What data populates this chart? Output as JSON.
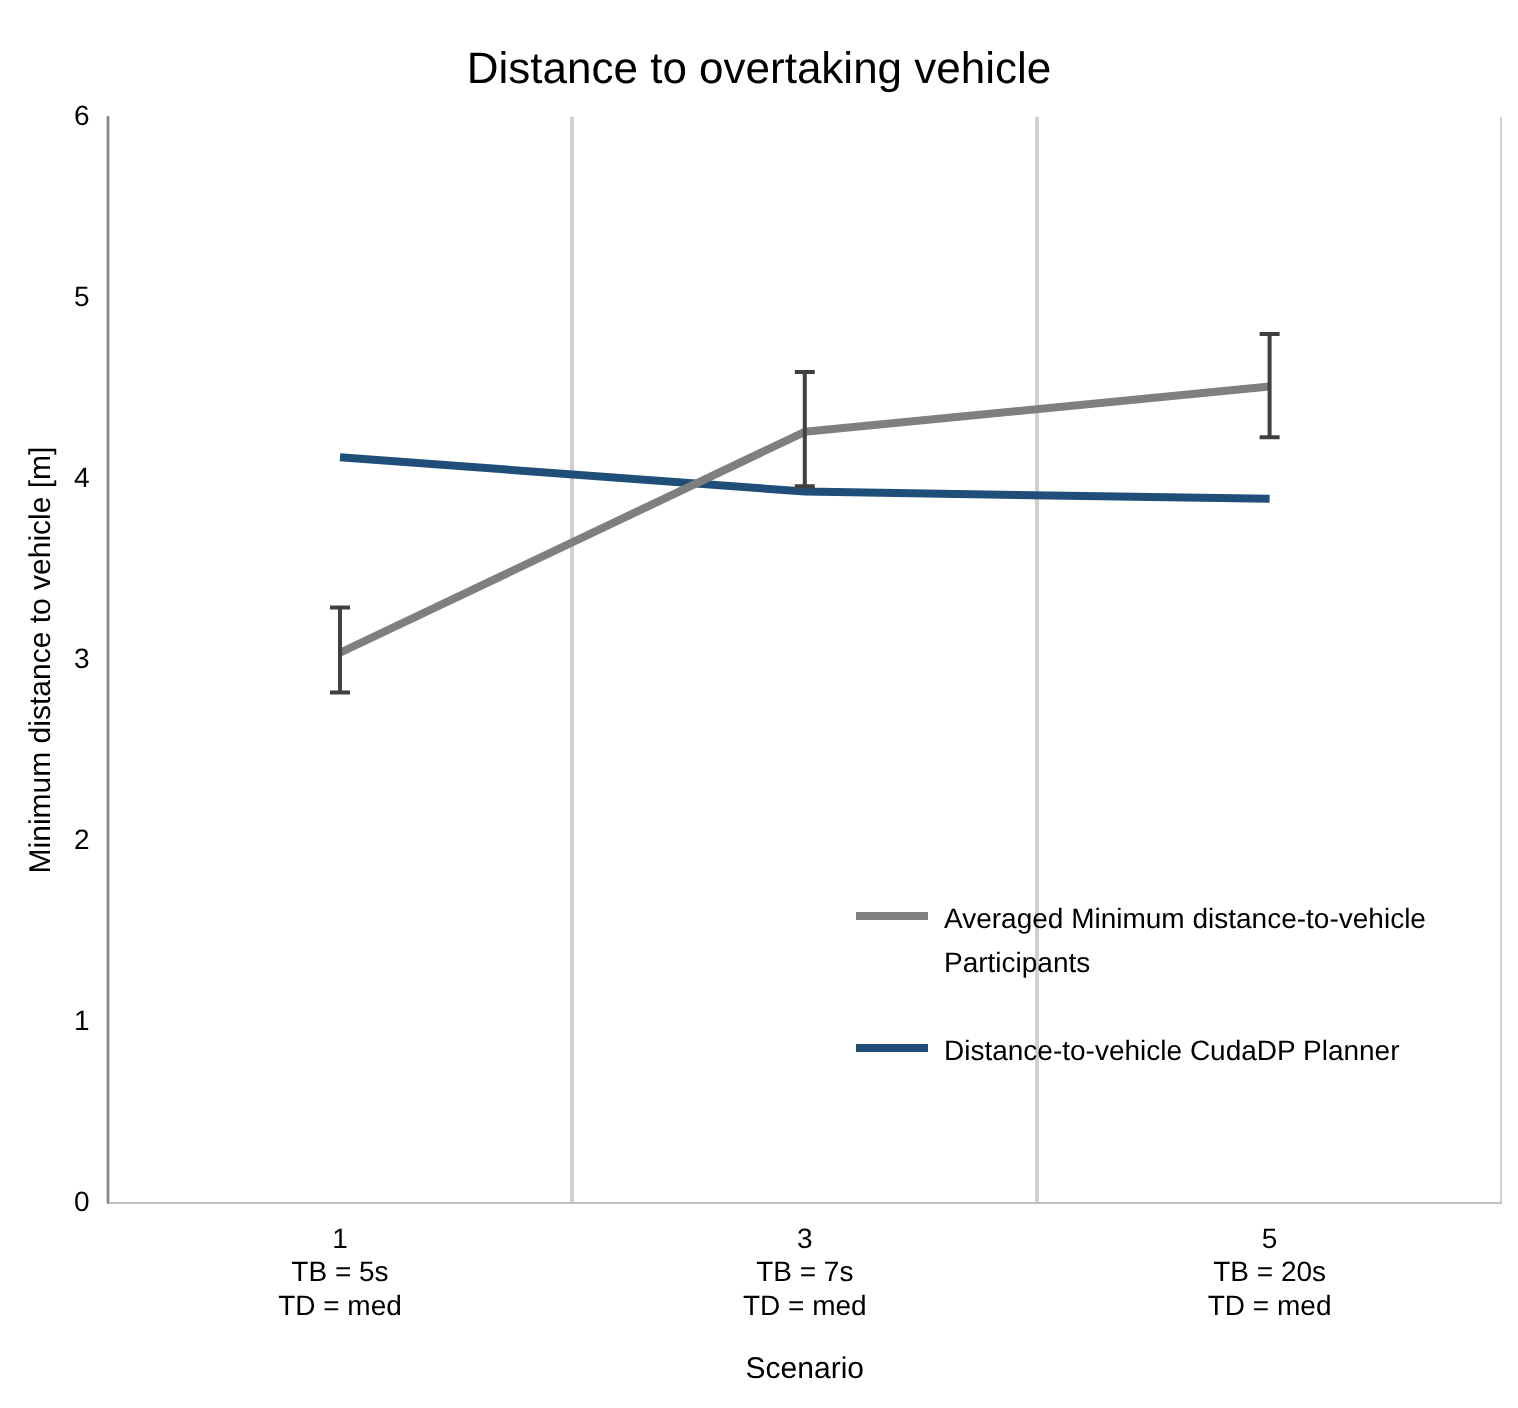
{
  "chart_data": {
    "type": "line",
    "title": "Distance to overtaking vehicle",
    "xlabel": "Scenario",
    "ylabel": "Minimum distance to vehicle [m]",
    "categories": [
      "1\nTB = 5s\nTD = med",
      "3\nTB = 7s\nTD = med",
      "5\nTB = 20s\nTD = med"
    ],
    "series": [
      {
        "name": "Averaged Minimum distance-to-vehicle Participants",
        "color": "#7f7f7f",
        "values": [
          3.04,
          4.26,
          4.51
        ],
        "errors": [
          [
            2.82,
            3.29
          ],
          [
            3.96,
            4.59
          ],
          [
            4.23,
            4.8
          ]
        ]
      },
      {
        "name": "Distance-to-vehicle CudaDP Planner",
        "color": "#1f4e79",
        "values": [
          4.12,
          3.93,
          3.89
        ]
      }
    ],
    "ylim": [
      0,
      6
    ],
    "yticks": [
      0,
      1,
      2,
      3,
      4,
      5,
      6
    ],
    "grid": "x",
    "legend": "bottom right",
    "marker": "none",
    "line_style": "solid"
  }
}
